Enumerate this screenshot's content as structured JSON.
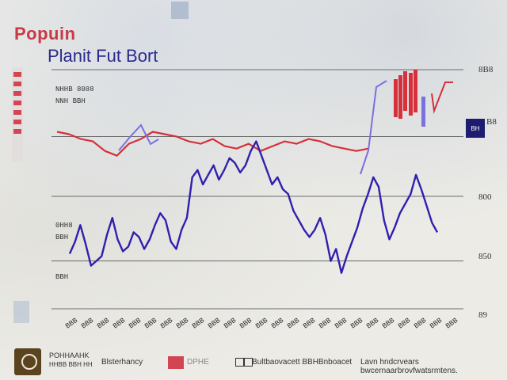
{
  "header": {
    "brand": "Popuin"
  },
  "notes": [
    "NHHB 8088",
    "NNH BBH",
    "0HH8",
    "BBH",
    "BBH"
  ],
  "badge": {
    "label": "BH"
  },
  "footer": {
    "credit": "POHHAAHK",
    "credit_sub": "HHBB BBH HH",
    "source": "Blsterhancy",
    "tag": "DPHE",
    "legend": "Bultbaovacett BBHBnboacet",
    "note": "Lavn hndcrvears bwcernaarbrovfwatsrmtens."
  },
  "colors": {
    "red": "#d6303a",
    "blue": "#2f20b0",
    "violet": "#7a70e0",
    "grid": "#6a6a6a"
  },
  "chart_data": {
    "type": "line",
    "title": "Planit Fut Bort",
    "right_ticks": [
      "8B8",
      "800",
      "850",
      "89",
      "B8"
    ],
    "x_tick_labels": [
      "BBB",
      "BBB",
      "BBB",
      "BBB",
      "BBB",
      "BBB",
      "BBB",
      "BBB",
      "BBB",
      "BBB",
      "BBB",
      "BBB",
      "BBB",
      "BBB",
      "BBB",
      "BBB",
      "BBB",
      "BBB",
      "BBB",
      "BBB",
      "BBB",
      "BBB",
      "BBB",
      "BBB",
      "BBB"
    ],
    "ylim": [
      0,
      100
    ],
    "series": [
      {
        "color": "#d6303a",
        "x": [
          0,
          3,
          6,
          9,
          12,
          15,
          18,
          21,
          24,
          27,
          30,
          33,
          36,
          39,
          42,
          45,
          48,
          51,
          54,
          57,
          60,
          63,
          66,
          69,
          72,
          75,
          78
        ],
        "values": [
          74,
          73,
          71,
          70,
          66,
          64,
          69,
          71,
          74,
          73,
          72,
          70,
          69,
          71,
          68,
          67,
          69,
          66,
          68,
          70,
          69,
          71,
          70,
          68,
          67,
          66,
          67
        ]
      },
      {
        "color": "#2f20b0",
        "x": [
          0,
          2,
          4,
          6,
          8,
          10,
          12,
          14,
          16,
          18,
          20,
          22,
          24,
          26,
          28,
          30,
          32,
          34,
          36,
          38,
          40,
          42,
          44,
          46,
          48,
          50,
          52,
          54,
          56,
          58,
          60,
          62,
          64,
          66,
          68,
          70,
          72,
          74,
          76,
          78,
          80,
          82,
          84,
          86,
          88,
          90,
          92,
          94,
          96,
          98,
          100,
          102,
          104,
          106,
          108,
          110,
          112,
          114,
          116,
          118,
          120,
          122,
          124,
          126,
          128,
          130,
          132,
          134,
          136,
          138
        ],
        "values": [
          23,
          28,
          35,
          27,
          18,
          20,
          22,
          31,
          38,
          29,
          24,
          26,
          32,
          30,
          25,
          29,
          35,
          40,
          37,
          28,
          25,
          33,
          38,
          55,
          58,
          52,
          56,
          60,
          54,
          58,
          63,
          61,
          57,
          60,
          66,
          70,
          64,
          58,
          52,
          55,
          50,
          48,
          41,
          37,
          33,
          30,
          33,
          38,
          31,
          20,
          25,
          15,
          22,
          28,
          34,
          42,
          48,
          55,
          51,
          37,
          29,
          34,
          40,
          44,
          48,
          56,
          50,
          43,
          36,
          32
        ]
      }
    ]
  }
}
